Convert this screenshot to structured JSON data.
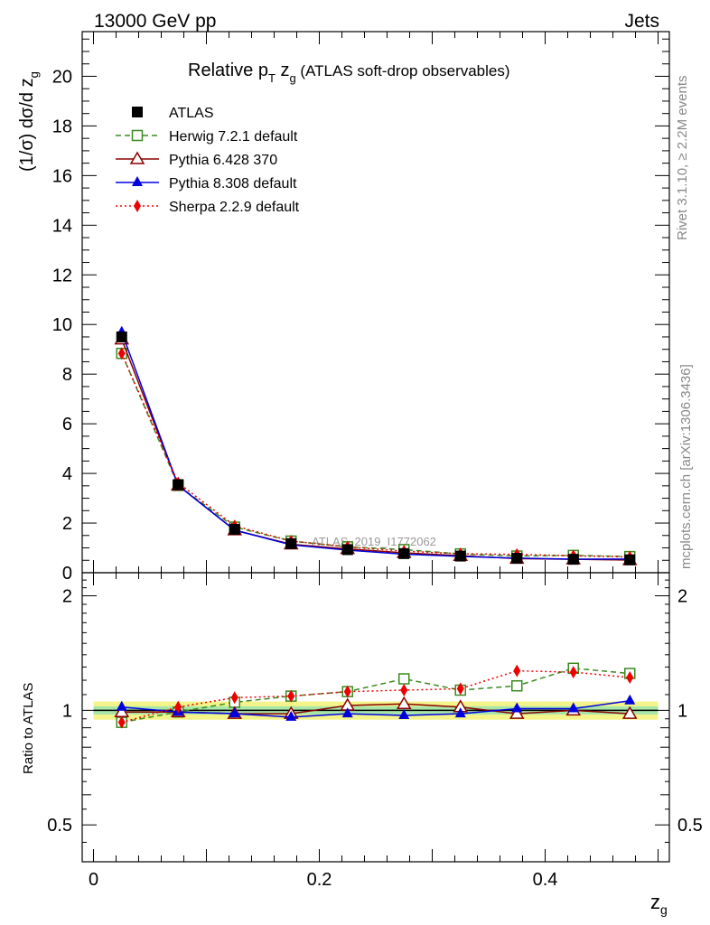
{
  "header": {
    "left": "13000 GeV pp",
    "right": "Jets"
  },
  "side": {
    "rivet": "Rivet 3.1.10, ≥ 2.2M events",
    "mcplots": "mcplots.cern.ch [arXiv:1306.3436]"
  },
  "chart_data": {
    "type": "line",
    "title": "Relative pT zg (ATLAS soft-drop observables)",
    "title_parts": {
      "a": "Relative p",
      "sub_T": "T",
      "b": " z",
      "sub_g": "g",
      "c": " (ATLAS soft-drop observables)"
    },
    "analysis_id": "ATLAS_2019_I1772062",
    "xlabel": "z",
    "xlabel_sub": "g",
    "ylabel": "(1/σ) dσ/d z",
    "ylabel_sub": "g",
    "ratio_ylabel": "Ratio to ATLAS",
    "xlim": [
      -0.01,
      0.51
    ],
    "ylim_main": [
      0,
      21.8
    ],
    "ylim_ratio_log": [
      0.4,
      2.3
    ],
    "x_ticks": [
      "0",
      "0.2",
      "0.4"
    ],
    "y_ticks_main": [
      "0",
      "2",
      "4",
      "6",
      "8",
      "10",
      "12",
      "14",
      "16",
      "18",
      "20"
    ],
    "y_ticks_ratio": [
      "0.5",
      "1",
      "2"
    ],
    "legend_position": "top-left",
    "x": [
      0.025,
      0.075,
      0.125,
      0.175,
      0.225,
      0.275,
      0.325,
      0.375,
      0.425,
      0.475
    ],
    "data": {
      "name": "ATLAS",
      "values": [
        9.5,
        3.55,
        1.75,
        1.17,
        0.93,
        0.77,
        0.67,
        0.58,
        0.54,
        0.52
      ]
    },
    "series": [
      {
        "name": "Herwig 7.2.1 default",
        "color": "#3a8a1f",
        "marker": "open-square",
        "dash": "6,4",
        "ratio": [
          0.93,
          0.99,
          1.05,
          1.09,
          1.12,
          1.21,
          1.13,
          1.16,
          1.29,
          1.25
        ]
      },
      {
        "name": "Pythia 6.428 370",
        "color": "#8b0000",
        "marker": "open-triangle",
        "dash": "",
        "ratio": [
          0.99,
          0.99,
          0.98,
          0.98,
          1.03,
          1.04,
          1.02,
          0.98,
          1.0,
          0.98
        ]
      },
      {
        "name": "Pythia 8.308 default",
        "color": "#0000dd",
        "marker": "filled-triangle",
        "dash": "",
        "ratio": [
          1.02,
          0.99,
          0.98,
          0.96,
          0.98,
          0.97,
          0.98,
          1.01,
          1.01,
          1.06
        ]
      },
      {
        "name": "Sherpa 2.2.9 default",
        "color": "#ee0000",
        "marker": "filled-diamond",
        "dash": "2,3",
        "ratio": [
          0.93,
          1.02,
          1.08,
          1.09,
          1.12,
          1.13,
          1.14,
          1.27,
          1.26,
          1.22
        ]
      }
    ],
    "band_outer": 0.055,
    "band_inner": 0.025,
    "band_colors": {
      "outer": "#f4f48a",
      "inner": "#a8e6a8",
      "data": "#000000"
    }
  }
}
